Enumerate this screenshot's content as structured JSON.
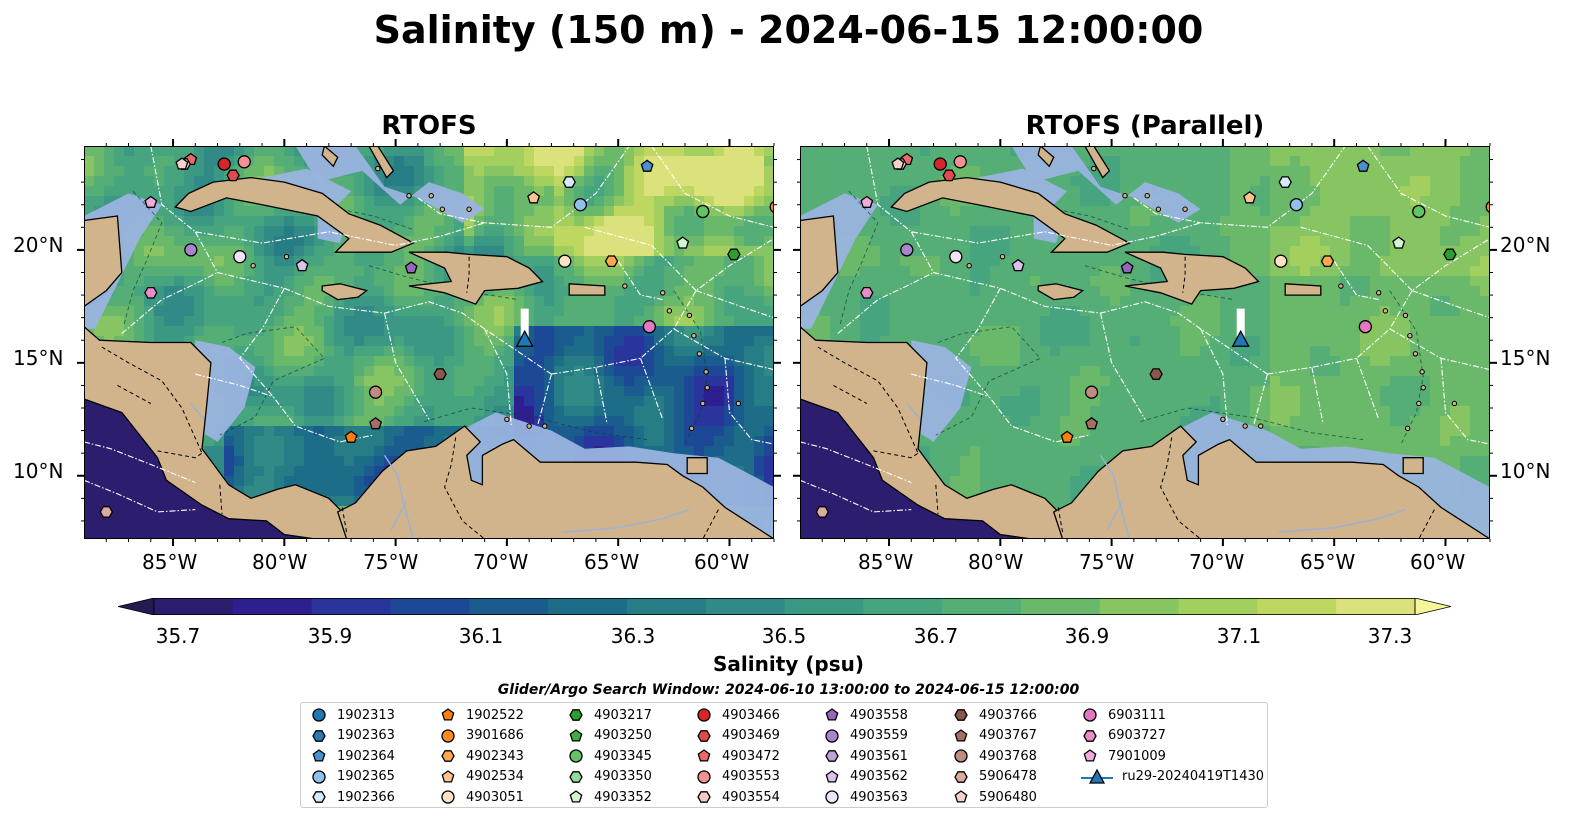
{
  "title": "Salinity (150 m) - 2024-06-15 12:00:00",
  "maps": [
    {
      "title": "RTOFS",
      "style": "detailed"
    },
    {
      "title": "RTOFS (Parallel)",
      "style": "smooth"
    }
  ],
  "axis": {
    "lon_ticks": [
      "85°W",
      "80°W",
      "75°W",
      "70°W",
      "65°W",
      "60°W"
    ],
    "lat_ticks": [
      "20°N",
      "15°N",
      "10°N"
    ]
  },
  "colorbar": {
    "title": "Salinity (psu)",
    "ticks": [
      "35.7",
      "35.9",
      "36.1",
      "36.3",
      "36.5",
      "36.7",
      "36.9",
      "37.1",
      "37.3"
    ],
    "min": 35.7,
    "max": 37.3,
    "step": 0.1,
    "colors": [
      "#2c1d6e",
      "#2d1f8f",
      "#29349c",
      "#1d4896",
      "#1a5c8e",
      "#1d6d89",
      "#277d86",
      "#318a85",
      "#3a9883",
      "#46a47e",
      "#55ae76",
      "#6ab96b",
      "#86c562",
      "#a2cf5e",
      "#bed761",
      "#dbe27b"
    ]
  },
  "legend_title": "Glider/Argo Search Window: 2024-06-10 13:00:00 to 2024-06-15 12:00:00",
  "legend": [
    {
      "label": "1902313",
      "shape": "circle",
      "color": "#1f77b4"
    },
    {
      "label": "1902363",
      "shape": "hexagon",
      "color": "#2a7ab8"
    },
    {
      "label": "1902364",
      "shape": "pentagon",
      "color": "#4a90d0"
    },
    {
      "label": "1902365",
      "shape": "circle",
      "color": "#8ec2ed"
    },
    {
      "label": "1902366",
      "shape": "hexagon",
      "color": "#d5ebfb"
    },
    {
      "label": "1902522",
      "shape": "pentagon",
      "color": "#ff7f0e"
    },
    {
      "label": "3901686",
      "shape": "circle",
      "color": "#ff8a1e"
    },
    {
      "label": "4902343",
      "shape": "hexagon",
      "color": "#ffa84f"
    },
    {
      "label": "4902534",
      "shape": "pentagon",
      "color": "#ffc590"
    },
    {
      "label": "4903051",
      "shape": "circle",
      "color": "#ffe1c4"
    },
    {
      "label": "4903217",
      "shape": "hexagon",
      "color": "#2ca02c"
    },
    {
      "label": "4903250",
      "shape": "pentagon",
      "color": "#3fae3f"
    },
    {
      "label": "4903345",
      "shape": "circle",
      "color": "#62c462"
    },
    {
      "label": "4903350",
      "shape": "hexagon",
      "color": "#95db95"
    },
    {
      "label": "4903352",
      "shape": "pentagon",
      "color": "#d2f5d2"
    },
    {
      "label": "4903466",
      "shape": "circle",
      "color": "#d62728"
    },
    {
      "label": "4903469",
      "shape": "hexagon",
      "color": "#e04a4a"
    },
    {
      "label": "4903472",
      "shape": "pentagon",
      "color": "#e86a6a"
    },
    {
      "label": "4903553",
      "shape": "circle",
      "color": "#f29292"
    },
    {
      "label": "4903554",
      "shape": "hexagon",
      "color": "#fbc8c8"
    },
    {
      "label": "4903558",
      "shape": "pentagon",
      "color": "#9467bd"
    },
    {
      "label": "4903559",
      "shape": "circle",
      "color": "#a884cc"
    },
    {
      "label": "4903561",
      "shape": "hexagon",
      "color": "#bfa2dd"
    },
    {
      "label": "4903562",
      "shape": "pentagon",
      "color": "#d8c2ee"
    },
    {
      "label": "4903563",
      "shape": "circle",
      "color": "#efe2fb"
    },
    {
      "label": "4903766",
      "shape": "hexagon",
      "color": "#8c564b"
    },
    {
      "label": "4903767",
      "shape": "pentagon",
      "color": "#a66e61"
    },
    {
      "label": "4903768",
      "shape": "circle",
      "color": "#c18b7f"
    },
    {
      "label": "5906478",
      "shape": "hexagon",
      "color": "#dcab9f"
    },
    {
      "label": "5906480",
      "shape": "pentagon",
      "color": "#f6d3ca"
    },
    {
      "label": "6903111",
      "shape": "circle",
      "color": "#e377c2"
    },
    {
      "label": "6903727",
      "shape": "hexagon",
      "color": "#e88dcc"
    },
    {
      "label": "7901009",
      "shape": "pentagon",
      "color": "#f2a9db"
    },
    {
      "label": "ru29-20240419T1430",
      "shape": "glider",
      "color": "#1f77b4"
    }
  ],
  "glider": {
    "label": "ru29-20240419T1430",
    "lon": -69.2,
    "lat": 16.0
  },
  "floats": [
    {
      "label": "1902313",
      "lon": -57.7,
      "lat": 21.8
    },
    {
      "label": "1902364",
      "lon": -63.7,
      "lat": 23.7
    },
    {
      "label": "1902365",
      "lon": -66.7,
      "lat": 22.0
    },
    {
      "label": "1902366",
      "lon": -67.2,
      "lat": 23.0
    },
    {
      "label": "1902522",
      "lon": -77.0,
      "lat": 11.7
    },
    {
      "label": "3901686",
      "lon": -57.9,
      "lat": 21.9
    },
    {
      "label": "4902343",
      "lon": -65.3,
      "lat": 19.5
    },
    {
      "label": "4902534",
      "lon": -68.8,
      "lat": 22.3
    },
    {
      "label": "4903051",
      "lon": -67.4,
      "lat": 19.5
    },
    {
      "label": "4903217",
      "lon": -59.8,
      "lat": 19.8
    },
    {
      "label": "4903345",
      "lon": -61.2,
      "lat": 21.7
    },
    {
      "label": "4903352",
      "lon": -62.1,
      "lat": 20.3
    },
    {
      "label": "4903466",
      "lon": -82.7,
      "lat": 23.8
    },
    {
      "label": "4903469",
      "lon": -82.3,
      "lat": 23.3
    },
    {
      "label": "4903472",
      "lon": -84.2,
      "lat": 24.0
    },
    {
      "label": "4903553",
      "lon": -81.8,
      "lat": 23.9
    },
    {
      "label": "4903554",
      "lon": -84.5,
      "lat": 23.8
    },
    {
      "label": "4903558",
      "lon": -74.3,
      "lat": 19.2
    },
    {
      "label": "4903559",
      "lon": -84.2,
      "lat": 20.0
    },
    {
      "label": "4903562",
      "lon": -79.2,
      "lat": 19.3
    },
    {
      "label": "4903563",
      "lon": -82.0,
      "lat": 19.7
    },
    {
      "label": "4903766",
      "lon": -73.0,
      "lat": 14.5
    },
    {
      "label": "4903767",
      "lon": -75.9,
      "lat": 12.3
    },
    {
      "label": "4903768",
      "lon": -75.9,
      "lat": 13.7
    },
    {
      "label": "5906478",
      "lon": -88.0,
      "lat": 8.4
    },
    {
      "label": "5906480",
      "lon": -84.6,
      "lat": 23.8
    },
    {
      "label": "6903111",
      "lon": -63.6,
      "lat": 16.6
    },
    {
      "label": "7901009",
      "lon": -86.0,
      "lat": 22.1
    },
    {
      "label": "6903727",
      "lon": -86.0,
      "lat": 18.1
    }
  ]
}
